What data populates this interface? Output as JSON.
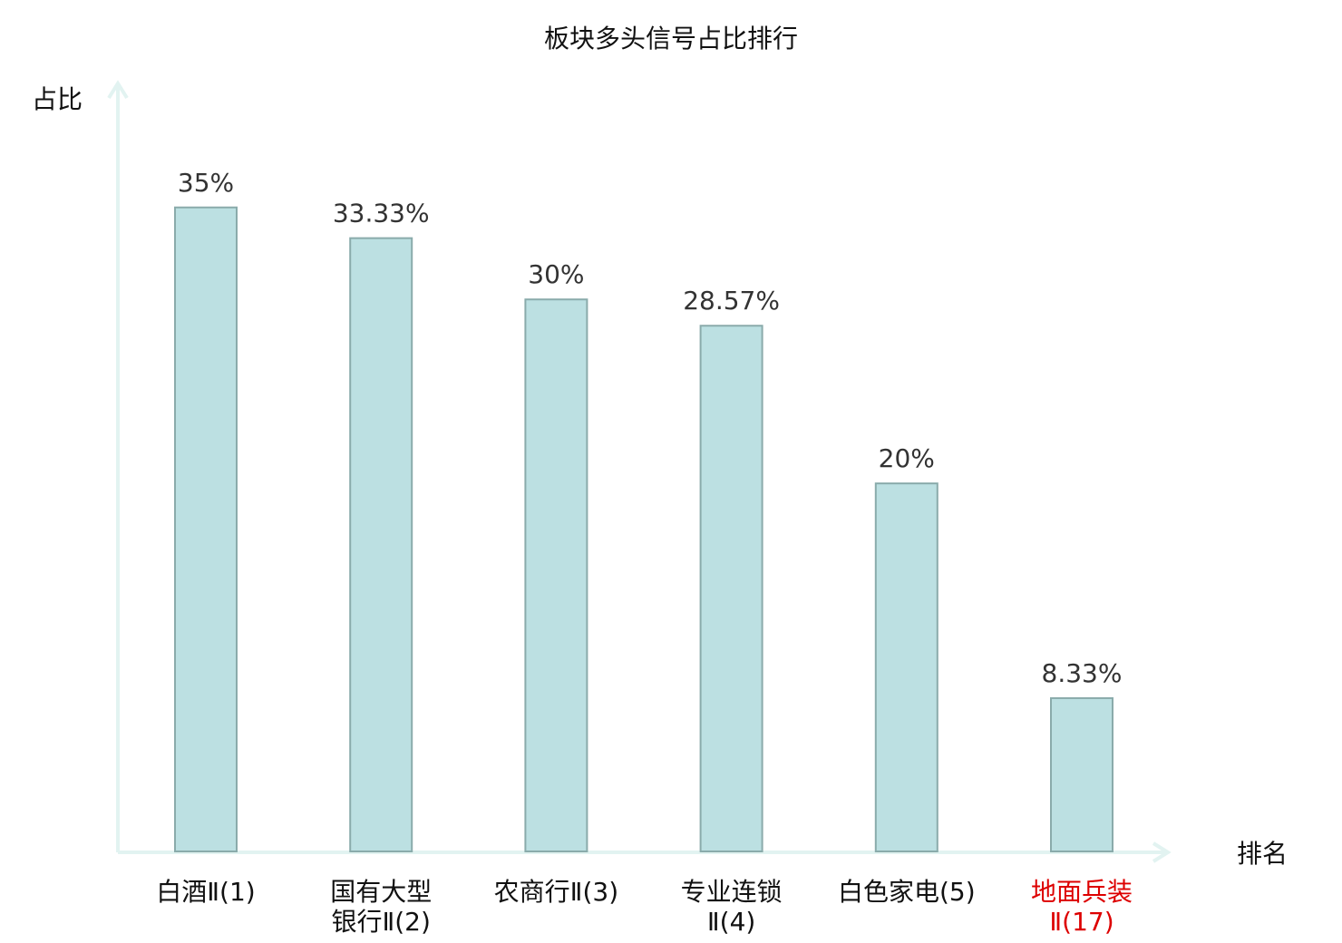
{
  "chart_data": {
    "type": "bar",
    "title": "板块多头信号占比排行",
    "ylabel": "占比",
    "xlabel": "排名",
    "ylim": [
      0,
      41
    ],
    "grid": false,
    "legend": "none",
    "categories": [
      [
        "白酒Ⅱ(1)"
      ],
      [
        "国有大型",
        "银行Ⅱ(2)"
      ],
      [
        "农商行Ⅱ(3)"
      ],
      [
        "专业连锁",
        "Ⅱ(4)"
      ],
      [
        "白色家电(5)"
      ],
      [
        "地面兵装",
        "Ⅱ(17)"
      ]
    ],
    "values": [
      35,
      33.33,
      30,
      28.57,
      20,
      8.33
    ],
    "value_labels": [
      "35%",
      "33.33%",
      "30%",
      "28.57%",
      "20%",
      "8.33%"
    ],
    "highlight_index": 5,
    "colors": {
      "bar_fill": "#bce0e2",
      "bar_stroke": "#8aabab",
      "axis": "#e2f3f1",
      "highlight_text": "#dd0000"
    }
  }
}
